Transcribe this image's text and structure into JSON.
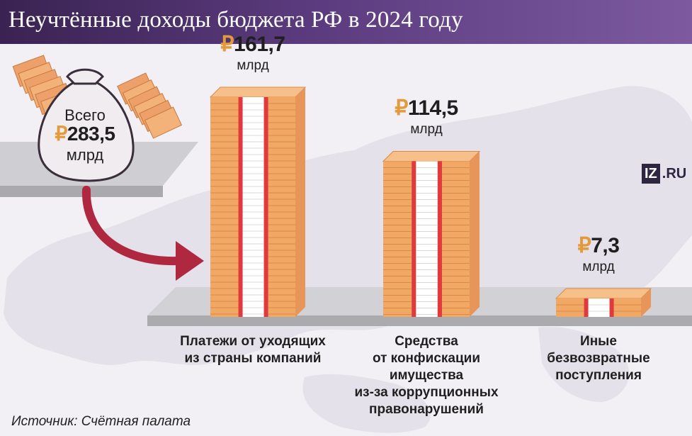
{
  "title": "Неучтённые доходы бюджета РФ в 2024 году",
  "total": {
    "label": "Всего",
    "currency": "₽",
    "value": "283,5",
    "unit": "млрд"
  },
  "currency_symbol": "₽",
  "value_labels": [
    "161,7",
    "114,5",
    "7,3"
  ],
  "unit_label": "млрд",
  "category_labels": [
    "Платежи от уходящих\nиз страны компаний",
    "Средства\nот конфискации\nимущества\nиз-за коррупционных\nправонарушений",
    "Иные\nбезвозвратные\nпоступления"
  ],
  "logo": {
    "iz": "IZ",
    "ru": ".RU"
  },
  "source": "Источник: Счётная палата",
  "colors": {
    "header": "#4a2f68",
    "bill": "#f2a865",
    "bill_edge": "#d98a45",
    "band_red": "#e0393e",
    "band_white": "#ffffff",
    "shelf": "#c8c8cc",
    "arrow": "#b0283f",
    "map": "#e4e1ea"
  },
  "chart_data": {
    "type": "bar",
    "title": "Неучтённые доходы бюджета РФ в 2024 году",
    "categories": [
      "Платежи от уходящих из страны компаний",
      "Средства от конфискации имущества из-за коррупционных правонарушений",
      "Иные безвозвратные поступления"
    ],
    "values": [
      161.7,
      114.5,
      7.3
    ],
    "unit": "млрд ₽",
    "total": 283.5,
    "xlabel": "",
    "ylabel": "",
    "grid": false,
    "legend": "none"
  }
}
